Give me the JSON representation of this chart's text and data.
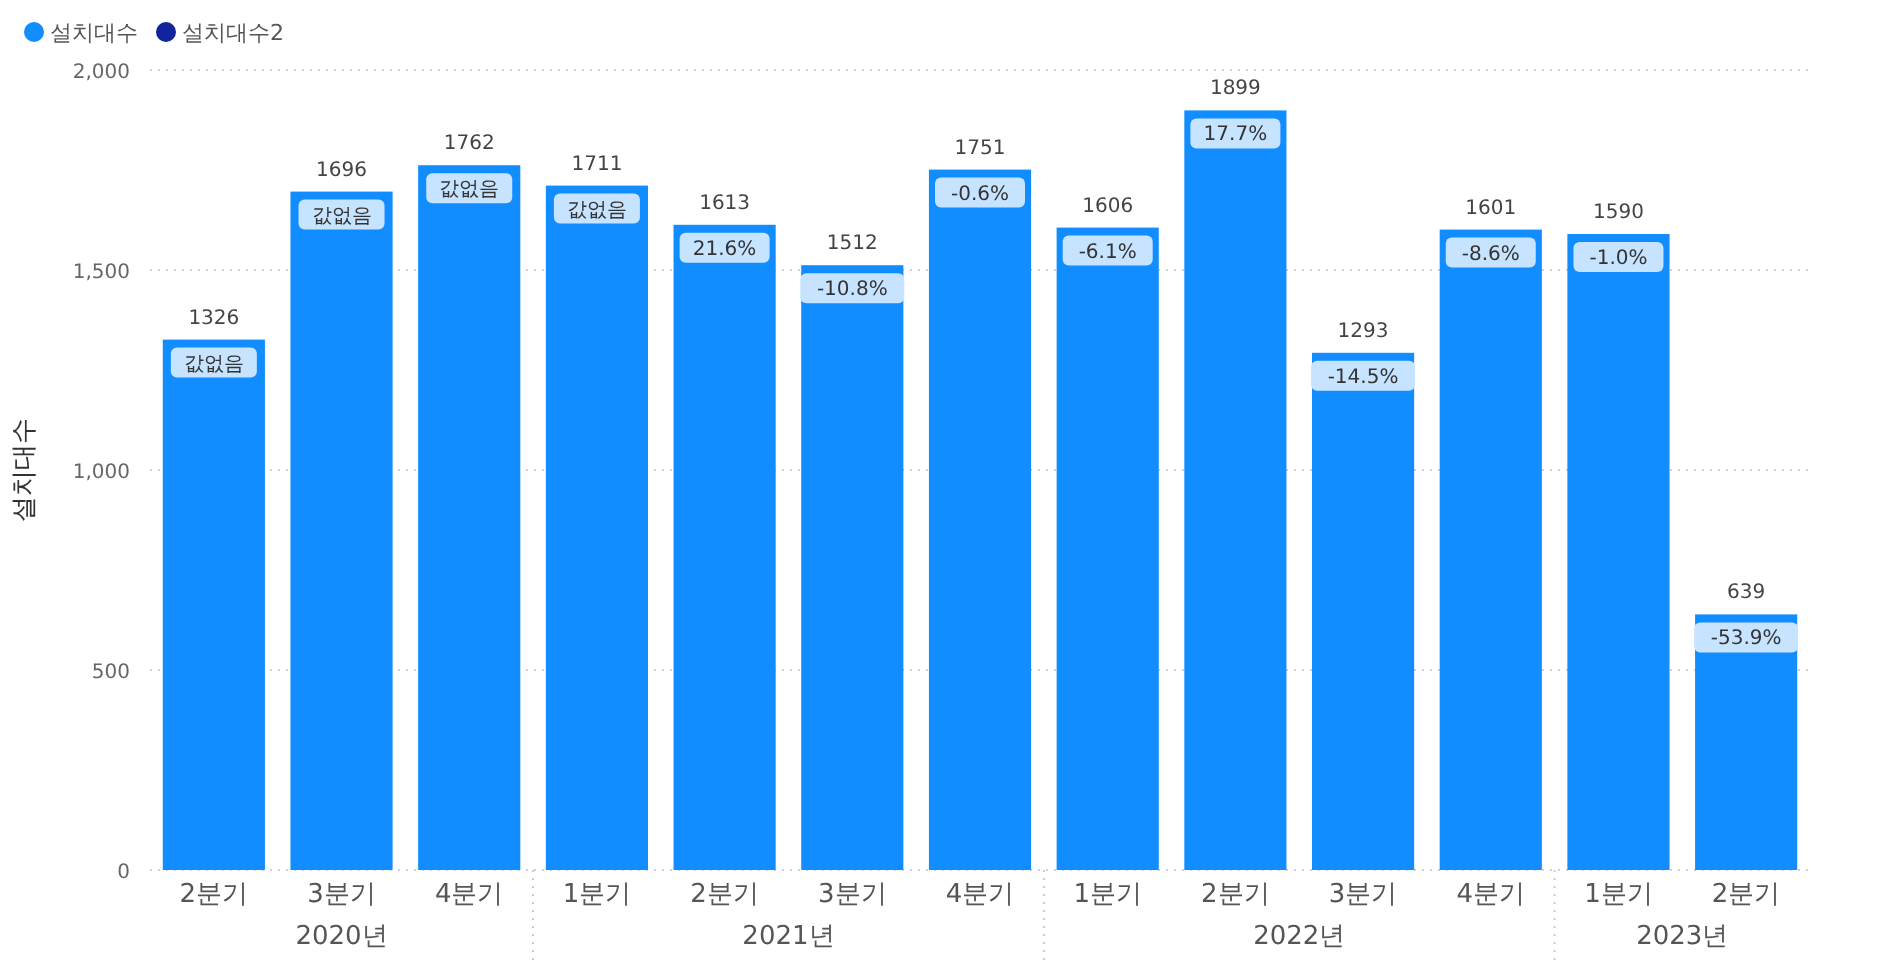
{
  "chart_data": {
    "type": "bar",
    "ylabel": "설치대수",
    "categories": [
      "2분기",
      "3분기",
      "4분기",
      "1분기",
      "2분기",
      "3분기",
      "4분기",
      "1분기",
      "2분기",
      "3분기",
      "4분기",
      "1분기",
      "2분기"
    ],
    "series": [
      {
        "name": "설치대수",
        "color": "#118dff",
        "values": [
          1326,
          1696,
          1762,
          1711,
          1613,
          1512,
          1751,
          1606,
          1899,
          1293,
          1601,
          1590,
          639
        ]
      },
      {
        "name": "설치대수2",
        "color": "#12239e",
        "values": [
          null,
          null,
          null,
          null,
          null,
          null,
          null,
          null,
          null,
          null,
          null,
          null,
          null
        ],
        "value_labels": [
          "값없음",
          "값없음",
          "값없음",
          "값없음",
          "21.6%",
          "-10.8%",
          "-0.6%",
          "-6.1%",
          "17.7%",
          "-14.5%",
          "-8.6%",
          "-1.0%",
          "-53.9%"
        ]
      }
    ],
    "annotations": [
      "2020년",
      "2021년",
      "2022년",
      "2023년"
    ],
    "ylim": [
      0,
      2000
    ],
    "yticks": [
      0,
      500,
      {
        "value": 1000,
        "label": "1,000"
      },
      {
        "value": 1500,
        "label": "1,500"
      },
      {
        "value": 2000,
        "label": "2,000"
      }
    ],
    "grid": "y",
    "legend": "top left",
    "data_labels": true
  }
}
